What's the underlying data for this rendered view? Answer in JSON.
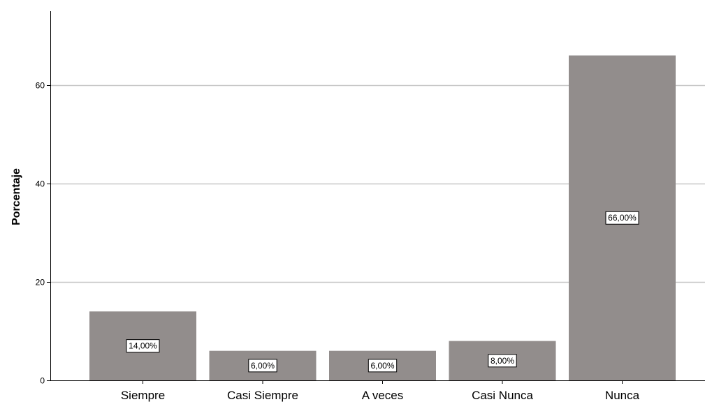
{
  "chart_data": {
    "type": "bar",
    "categories": [
      "Siempre",
      "Casi Siempre",
      "A veces",
      "Casi Nunca",
      "Nunca"
    ],
    "values": [
      14,
      6,
      6,
      8,
      66
    ],
    "data_labels": [
      "14,00%",
      "6,00%",
      "6,00%",
      "8,00%",
      "66,00%"
    ],
    "ylabel": "Porcentaje",
    "xlabel": "",
    "ylim": [
      0,
      75
    ],
    "yticks": [
      0,
      20,
      40,
      60
    ],
    "ytick_labels": [
      "0",
      "20",
      "40",
      "60"
    ],
    "grid": true,
    "legend": "none",
    "colors": {
      "bar": "#928d8c",
      "grid": "#c8c8c8",
      "axis": "#000000",
      "label_box_fill": "#ffffff",
      "label_box_stroke": "#000000"
    }
  }
}
